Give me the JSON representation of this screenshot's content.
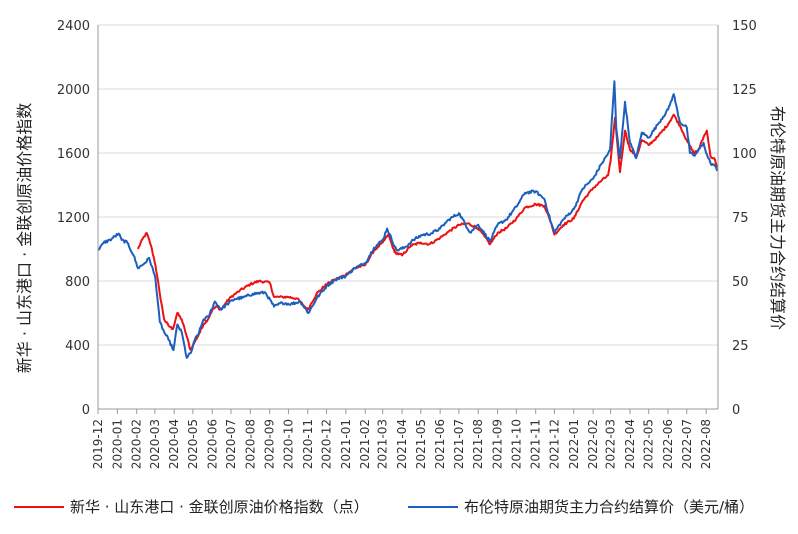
{
  "chart_data": {
    "type": "line",
    "left_axis": {
      "label": "新华 · 山东港口 · 金联创原油价格指数",
      "ylim": [
        0,
        2400
      ],
      "ticks": [
        "0",
        "400",
        "800",
        "1200",
        "1600",
        "2000",
        "2400"
      ]
    },
    "right_axis": {
      "label": "布伦特原油期货主力合约结算价",
      "ylim": [
        0,
        150
      ],
      "ticks": [
        "0",
        "25",
        "50",
        "75",
        "100",
        "125",
        "150"
      ]
    },
    "x_ticks": [
      "2019-12",
      "2020-01",
      "2020-02",
      "2020-03",
      "2020-04",
      "2020-05",
      "2020-06",
      "2020-07",
      "2020-08",
      "2020-09",
      "2020-10",
      "2020-11",
      "2020-12",
      "2021-01",
      "2021-02",
      "2021-03",
      "2021-04",
      "2021-05",
      "2021-06",
      "2021-07",
      "2021-08",
      "2021-09",
      "2021-10",
      "2021-11",
      "2021-12",
      "2022-01",
      "2022-02",
      "2022-03",
      "2022-04",
      "2022-05",
      "2022-06",
      "2022-07",
      "2022-08"
    ],
    "grid": true,
    "legend_position": "bottom",
    "series": [
      {
        "name": "新华 · 山东港口 · 金联创原油价格指数（点）",
        "axis": "left",
        "color": "#ee1111",
        "points": [
          [
            "2020-02-03",
            1000
          ],
          [
            "2020-02-10",
            1060
          ],
          [
            "2020-02-17",
            1100
          ],
          [
            "2020-02-24",
            1020
          ],
          [
            "2020-03-02",
            900
          ],
          [
            "2020-03-09",
            720
          ],
          [
            "2020-03-16",
            560
          ],
          [
            "2020-03-23",
            520
          ],
          [
            "2020-03-30",
            500
          ],
          [
            "2020-04-06",
            600
          ],
          [
            "2020-04-13",
            560
          ],
          [
            "2020-04-20",
            470
          ],
          [
            "2020-04-27",
            370
          ],
          [
            "2020-05-04",
            420
          ],
          [
            "2020-05-11",
            470
          ],
          [
            "2020-05-18",
            530
          ],
          [
            "2020-05-25",
            560
          ],
          [
            "2020-06-01",
            620
          ],
          [
            "2020-06-08",
            640
          ],
          [
            "2020-06-15",
            620
          ],
          [
            "2020-06-22",
            660
          ],
          [
            "2020-07-01",
            700
          ],
          [
            "2020-07-15",
            740
          ],
          [
            "2020-08-01",
            780
          ],
          [
            "2020-08-15",
            800
          ],
          [
            "2020-09-01",
            790
          ],
          [
            "2020-09-08",
            700
          ],
          [
            "2020-09-22",
            700
          ],
          [
            "2020-10-01",
            700
          ],
          [
            "2020-10-15",
            690
          ],
          [
            "2020-11-01",
            620
          ],
          [
            "2020-11-15",
            720
          ],
          [
            "2020-12-01",
            780
          ],
          [
            "2020-12-15",
            810
          ],
          [
            "2021-01-01",
            840
          ],
          [
            "2021-01-15",
            880
          ],
          [
            "2021-02-01",
            900
          ],
          [
            "2021-02-15",
            990
          ],
          [
            "2021-03-01",
            1040
          ],
          [
            "2021-03-10",
            1090
          ],
          [
            "2021-03-20",
            980
          ],
          [
            "2021-04-01",
            960
          ],
          [
            "2021-04-15",
            1020
          ],
          [
            "2021-05-01",
            1040
          ],
          [
            "2021-05-15",
            1030
          ],
          [
            "2021-06-01",
            1070
          ],
          [
            "2021-06-15",
            1110
          ],
          [
            "2021-07-01",
            1150
          ],
          [
            "2021-07-15",
            1160
          ],
          [
            "2021-08-01",
            1130
          ],
          [
            "2021-08-20",
            1030
          ],
          [
            "2021-09-01",
            1100
          ],
          [
            "2021-09-15",
            1130
          ],
          [
            "2021-10-01",
            1190
          ],
          [
            "2021-10-15",
            1260
          ],
          [
            "2021-11-01",
            1280
          ],
          [
            "2021-11-15",
            1270
          ],
          [
            "2021-11-26",
            1160
          ],
          [
            "2021-12-01",
            1090
          ],
          [
            "2021-12-15",
            1150
          ],
          [
            "2022-01-01",
            1190
          ],
          [
            "2022-01-15",
            1300
          ],
          [
            "2022-02-01",
            1380
          ],
          [
            "2022-02-15",
            1430
          ],
          [
            "2022-02-25",
            1460
          ],
          [
            "2022-03-01",
            1550
          ],
          [
            "2022-03-08",
            1820
          ],
          [
            "2022-03-16",
            1480
          ],
          [
            "2022-03-24",
            1740
          ],
          [
            "2022-04-01",
            1620
          ],
          [
            "2022-04-12",
            1580
          ],
          [
            "2022-04-20",
            1680
          ],
          [
            "2022-05-01",
            1650
          ],
          [
            "2022-05-15",
            1700
          ],
          [
            "2022-06-01",
            1780
          ],
          [
            "2022-06-10",
            1840
          ],
          [
            "2022-06-20",
            1770
          ],
          [
            "2022-07-01",
            1680
          ],
          [
            "2022-07-12",
            1600
          ],
          [
            "2022-07-20",
            1620
          ],
          [
            "2022-07-28",
            1700
          ],
          [
            "2022-08-02",
            1740
          ],
          [
            "2022-08-08",
            1580
          ],
          [
            "2022-08-15",
            1560
          ],
          [
            "2022-08-19",
            1510
          ]
        ]
      },
      {
        "name": "布伦特原油期货主力合约结算价（美元/桶）",
        "axis": "right",
        "color": "#1d5fbd",
        "points": [
          [
            "2019-12-02",
            62
          ],
          [
            "2019-12-10",
            65
          ],
          [
            "2019-12-20",
            66
          ],
          [
            "2020-01-03",
            68.5
          ],
          [
            "2020-01-08",
            66
          ],
          [
            "2020-01-17",
            65
          ],
          [
            "2020-01-27",
            60
          ],
          [
            "2020-02-03",
            55
          ],
          [
            "2020-02-14",
            57
          ],
          [
            "2020-02-21",
            59
          ],
          [
            "2020-03-02",
            51
          ],
          [
            "2020-03-09",
            34
          ],
          [
            "2020-03-16",
            30
          ],
          [
            "2020-03-23",
            27
          ],
          [
            "2020-03-31",
            23
          ],
          [
            "2020-04-06",
            33
          ],
          [
            "2020-04-13",
            30
          ],
          [
            "2020-04-21",
            20
          ],
          [
            "2020-04-28",
            22
          ],
          [
            "2020-05-04",
            27
          ],
          [
            "2020-05-11",
            30
          ],
          [
            "2020-05-18",
            35
          ],
          [
            "2020-05-26",
            36
          ],
          [
            "2020-06-05",
            42
          ],
          [
            "2020-06-15",
            39
          ],
          [
            "2020-06-25",
            41
          ],
          [
            "2020-07-07",
            43
          ],
          [
            "2020-07-20",
            43.5
          ],
          [
            "2020-08-05",
            45
          ],
          [
            "2020-08-25",
            45.5
          ],
          [
            "2020-09-08",
            40
          ],
          [
            "2020-09-21",
            41.5
          ],
          [
            "2020-10-05",
            41
          ],
          [
            "2020-10-20",
            42
          ],
          [
            "2020-11-02",
            37.5
          ],
          [
            "2020-11-16",
            43.5
          ],
          [
            "2020-12-01",
            48
          ],
          [
            "2020-12-15",
            50.5
          ],
          [
            "2021-01-01",
            52
          ],
          [
            "2021-01-15",
            55
          ],
          [
            "2021-02-01",
            57
          ],
          [
            "2021-02-15",
            63
          ],
          [
            "2021-03-01",
            66
          ],
          [
            "2021-03-08",
            70.5
          ],
          [
            "2021-03-23",
            62
          ],
          [
            "2021-04-05",
            63
          ],
          [
            "2021-04-19",
            66
          ],
          [
            "2021-05-03",
            68
          ],
          [
            "2021-05-17",
            68.5
          ],
          [
            "2021-06-01",
            70.5
          ],
          [
            "2021-06-15",
            74
          ],
          [
            "2021-07-01",
            76.5
          ],
          [
            "2021-07-19",
            69
          ],
          [
            "2021-08-01",
            72
          ],
          [
            "2021-08-20",
            65.5
          ],
          [
            "2021-09-01",
            72
          ],
          [
            "2021-09-15",
            74
          ],
          [
            "2021-10-01",
            79
          ],
          [
            "2021-10-15",
            84.5
          ],
          [
            "2021-11-01",
            85
          ],
          [
            "2021-11-15",
            82
          ],
          [
            "2021-11-26",
            72.5
          ],
          [
            "2021-12-01",
            69
          ],
          [
            "2021-12-15",
            74
          ],
          [
            "2022-01-01",
            78
          ],
          [
            "2022-01-15",
            86
          ],
          [
            "2022-02-01",
            90
          ],
          [
            "2022-02-15",
            96
          ],
          [
            "2022-02-28",
            101
          ],
          [
            "2022-03-07",
            128
          ],
          [
            "2022-03-10",
            110
          ],
          [
            "2022-03-16",
            98
          ],
          [
            "2022-03-24",
            120
          ],
          [
            "2022-04-01",
            104
          ],
          [
            "2022-04-11",
            98
          ],
          [
            "2022-04-20",
            108
          ],
          [
            "2022-05-01",
            106
          ],
          [
            "2022-05-15",
            111
          ],
          [
            "2022-06-01",
            117
          ],
          [
            "2022-06-10",
            123
          ],
          [
            "2022-06-20",
            112
          ],
          [
            "2022-07-01",
            110
          ],
          [
            "2022-07-06",
            100
          ],
          [
            "2022-07-14",
            99
          ],
          [
            "2022-07-28",
            104
          ],
          [
            "2022-08-01",
            100
          ],
          [
            "2022-08-08",
            96
          ],
          [
            "2022-08-15",
            95
          ],
          [
            "2022-08-19",
            93
          ]
        ]
      }
    ]
  }
}
